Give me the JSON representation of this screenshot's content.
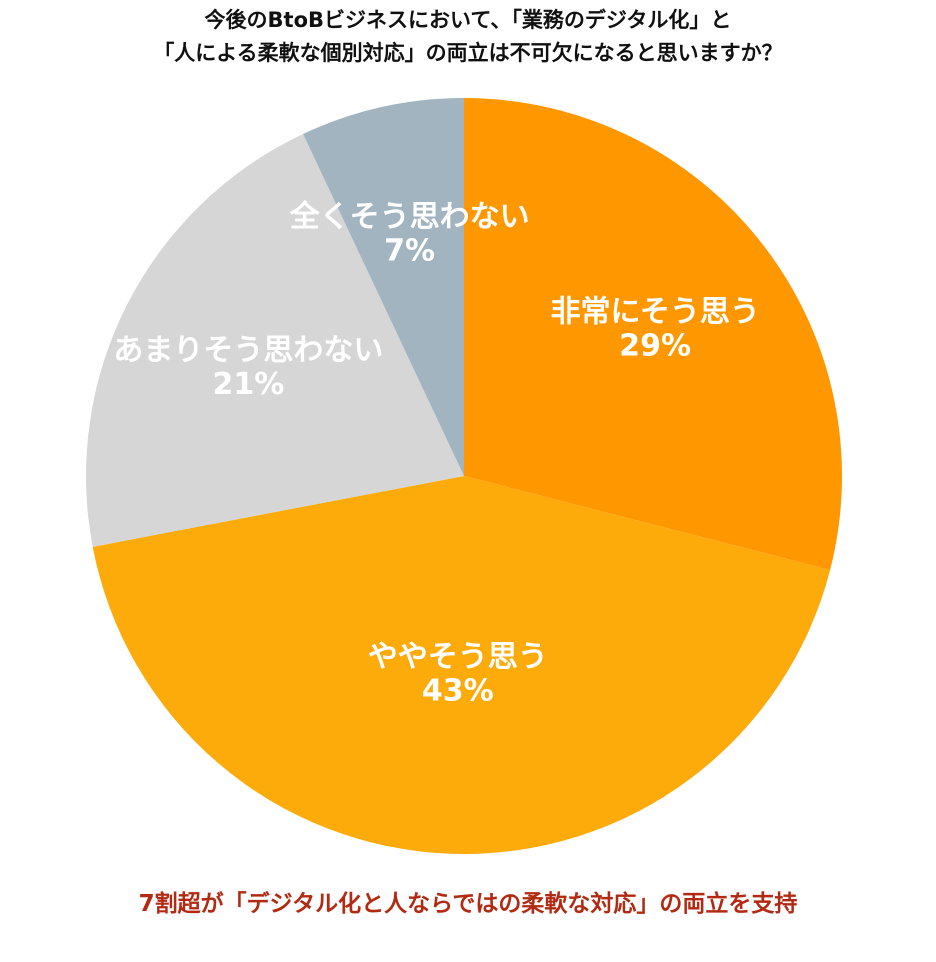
{
  "chart_data": {
    "type": "pie",
    "title": [
      "今後のBtoBビジネスにおいて、「業務のデジタル化」と",
      "「人による柔軟な個別対応」の両立は不可欠になると思いますか？"
    ],
    "slices": [
      {
        "name": "非常にそう思う",
        "value": 29,
        "label": "29%",
        "color": "#FF9700"
      },
      {
        "name": "ややそう思う",
        "value": 43,
        "label": "43%",
        "color": "#FDAA0B"
      },
      {
        "name": "あまりそう思わない",
        "value": 21,
        "label": "21%",
        "color": "#D6D6D6"
      },
      {
        "name": "全くそう思わない",
        "value": 7,
        "label": "7%",
        "color": "#A1B4BF"
      }
    ],
    "start": "12 o'clock",
    "direction": "clockwise",
    "legend": "none",
    "footer": "7割超が「デジタル化と人ならではの柔軟な対応」の両立を支持"
  }
}
